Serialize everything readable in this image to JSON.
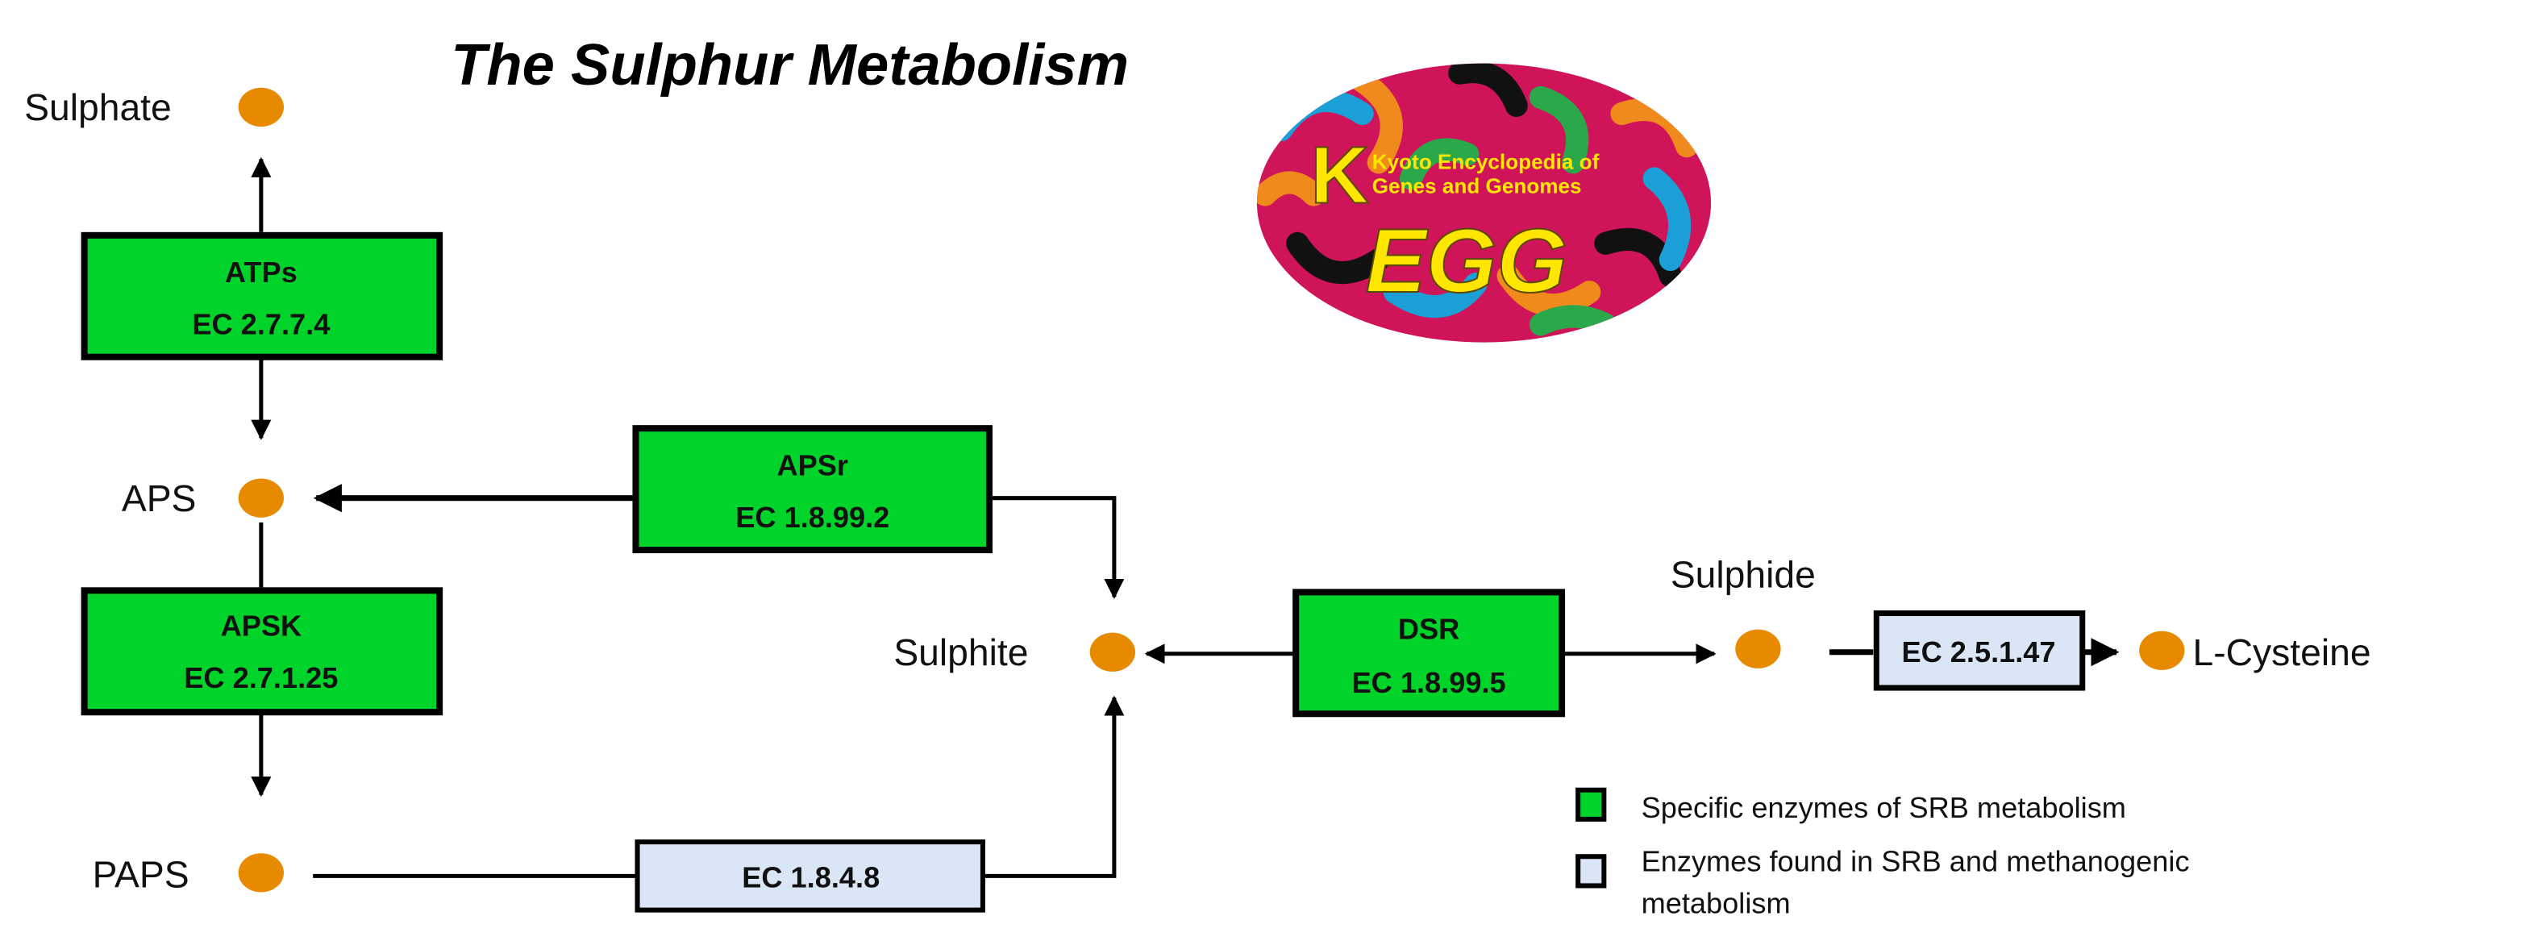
{
  "title": "The Sulphur Metabolism",
  "logo": {
    "main": "KEGG",
    "subtitle_line1": "Kyoto Encyclopedia of",
    "subtitle_line2": "Genes and Genomes"
  },
  "colors": {
    "specific": "#00d42a",
    "shared": "#dae5f5",
    "metabolite": "#e88a00"
  },
  "metabolites": {
    "sulphate": "Sulphate",
    "aps": "APS",
    "paps": "PAPS",
    "sulphite": "Sulphite",
    "sulphide": "Sulphide",
    "cysteine": "L-Cysteine"
  },
  "enzymes": {
    "atps": {
      "name": "ATPs",
      "ec": "EC 2.7.7.4"
    },
    "apsr": {
      "name": "APSr",
      "ec": "EC 1.8.99.2"
    },
    "apsk": {
      "name": "APSK",
      "ec": "EC 2.7.1.25"
    },
    "dsr": {
      "name": "DSR",
      "ec": "EC 1.8.99.5"
    },
    "paps_red": {
      "ec": "EC 1.8.4.8"
    },
    "cys_syn": {
      "ec": "EC 2.5.1.47"
    }
  },
  "legend": {
    "specific": "Specific enzymes of SRB metabolism",
    "shared_line1": "Enzymes found in SRB and methanogenic",
    "shared_line2": "metabolism"
  }
}
